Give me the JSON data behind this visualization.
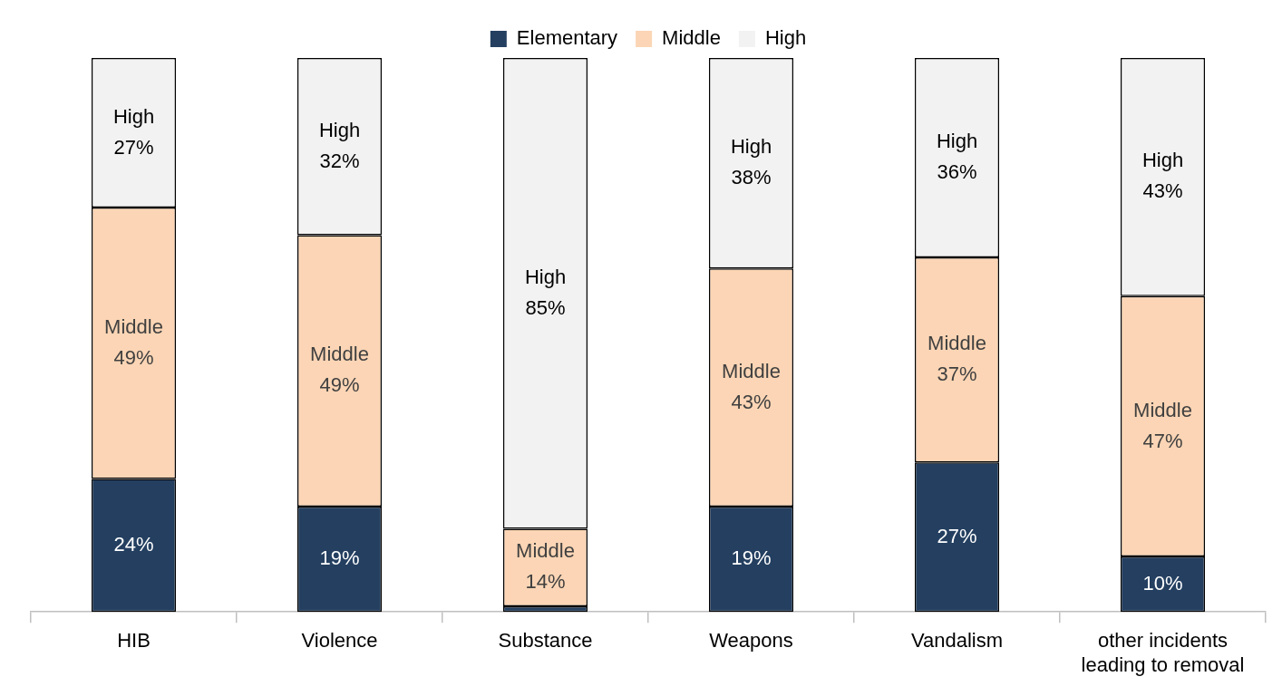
{
  "chart_data": {
    "type": "bar",
    "stacked": true,
    "categories": [
      "HIB",
      "Violence",
      "Substance",
      "Weapons",
      "Vandalism",
      "other incidents leading to removal"
    ],
    "series": [
      {
        "name": "Elementary",
        "color": "#243f60",
        "values": [
          24,
          19,
          1,
          19,
          27,
          10
        ],
        "value_labels": [
          "24%",
          "19%",
          null,
          "19%",
          "27%",
          "10%"
        ]
      },
      {
        "name": "Middle",
        "color": "#fbd5b5",
        "values": [
          49,
          49,
          14,
          43,
          37,
          47
        ],
        "value_labels": [
          "Middle\n49%",
          "Middle\n49%",
          "Middle\n14%",
          "Middle\n43%",
          "Middle\n37%",
          "Middle\n47%"
        ]
      },
      {
        "name": "High",
        "color": "#f2f2f2",
        "values": [
          27,
          32,
          85,
          38,
          36,
          43
        ],
        "value_labels": [
          "High\n27%",
          "High\n32%",
          "High\n85%",
          "High\n38%",
          "High\n36%",
          "High\n43%"
        ]
      }
    ],
    "ylim": [
      0,
      100
    ],
    "tick_labels": "x",
    "legend": "top",
    "grid": false
  }
}
